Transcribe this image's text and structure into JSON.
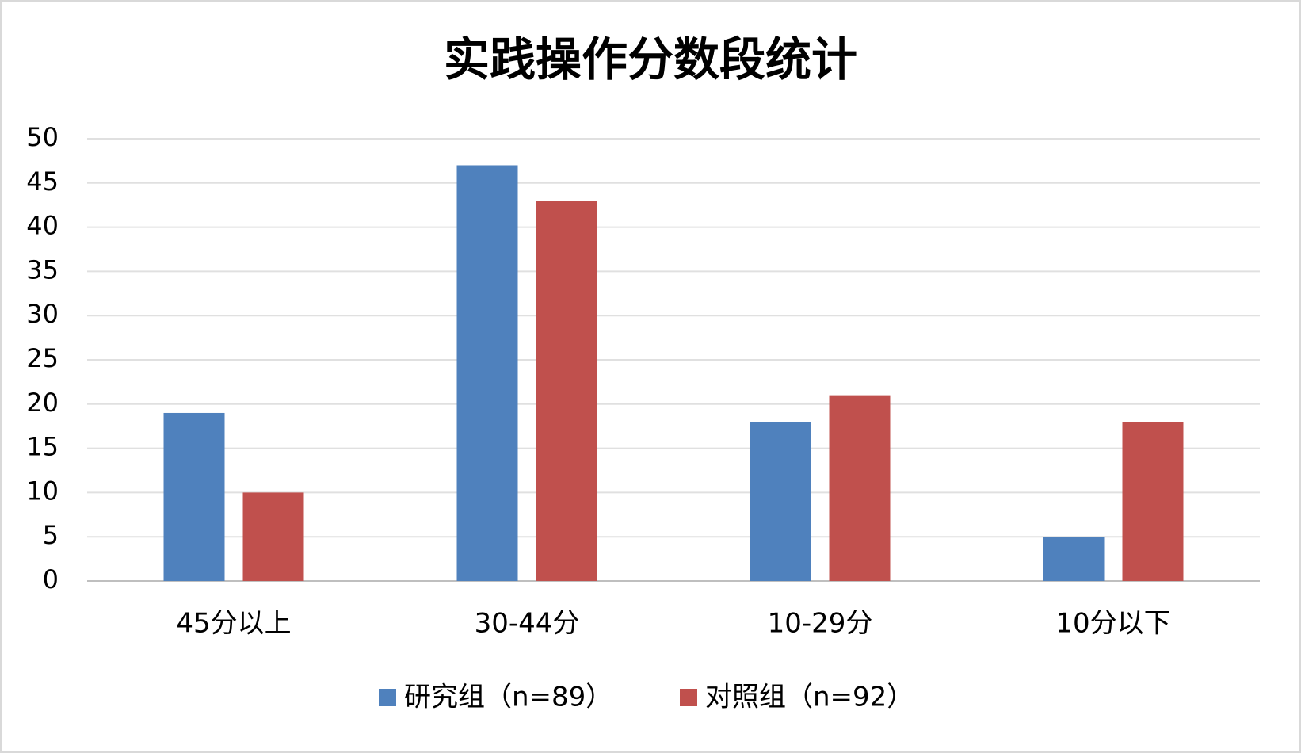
{
  "chart_data": {
    "type": "bar",
    "title": "实践操作分数段统计",
    "categories": [
      "45分以上",
      "30-44分",
      "10-29分",
      "10分以下"
    ],
    "series": [
      {
        "name": "研究组（n=89）",
        "color": "#4f81bd",
        "values": [
          19,
          47,
          18,
          5
        ]
      },
      {
        "name": "对照组（n=92）",
        "color": "#c0504d",
        "values": [
          10,
          43,
          21,
          18
        ]
      }
    ],
    "ylim": [
      0,
      50
    ],
    "yticks": [
      0,
      5,
      10,
      15,
      20,
      25,
      30,
      35,
      40,
      45,
      50
    ],
    "grid": true,
    "legend": "bottom"
  }
}
